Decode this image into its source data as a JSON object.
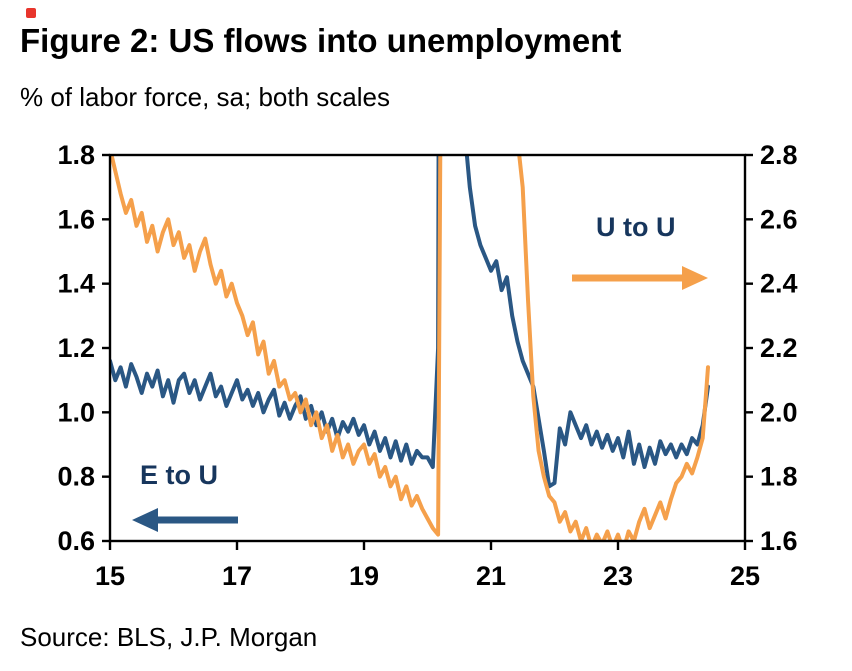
{
  "figure": {
    "title": "Figure 2: US flows into unemployment",
    "subtitle": "% of labor force, sa; both scales",
    "source": "Source: BLS, J.P. Morgan"
  },
  "chart_data": {
    "type": "line",
    "title": "Figure 2: US flows into unemployment",
    "subtitle": "% of labor force, sa; both scales",
    "source": "Source: BLS, J.P. Morgan",
    "x_range": [
      15,
      25
    ],
    "x_ticks": [
      15,
      17,
      19,
      21,
      23,
      25
    ],
    "x_start": 15.0,
    "x_step": 0.0833333,
    "axes": {
      "left": {
        "series": "E to U",
        "ylim": [
          0.6,
          1.8
        ],
        "ticks": [
          0.6,
          0.8,
          1.0,
          1.2,
          1.4,
          1.6,
          1.8
        ]
      },
      "right": {
        "series": "U to U",
        "ylim": [
          1.6,
          2.8
        ],
        "ticks": [
          1.6,
          1.8,
          2.0,
          2.2,
          2.4,
          2.6,
          2.8
        ]
      }
    },
    "series": [
      {
        "name": "E to U",
        "axis": "left",
        "color": "#2a5784",
        "values": [
          1.16,
          1.1,
          1.14,
          1.08,
          1.15,
          1.11,
          1.06,
          1.12,
          1.08,
          1.13,
          1.05,
          1.1,
          1.03,
          1.1,
          1.12,
          1.06,
          1.1,
          1.04,
          1.08,
          1.12,
          1.05,
          1.08,
          1.02,
          1.06,
          1.1,
          1.04,
          1.07,
          1.02,
          1.06,
          1.0,
          1.04,
          1.07,
          0.99,
          1.03,
          0.98,
          1.02,
          1.05,
          0.98,
          1.02,
          0.96,
          1.0,
          0.94,
          0.98,
          0.92,
          0.97,
          0.94,
          0.98,
          0.93,
          0.96,
          0.9,
          0.94,
          0.88,
          0.92,
          0.86,
          0.91,
          0.85,
          0.9,
          0.84,
          0.88,
          0.86,
          0.86,
          0.83,
          1.2,
          8.2,
          3.0,
          2.1,
          1.95,
          1.88,
          1.7,
          1.58,
          1.52,
          1.48,
          1.44,
          1.47,
          1.38,
          1.42,
          1.3,
          1.22,
          1.16,
          1.12,
          1.08,
          0.98,
          0.88,
          0.77,
          0.78,
          0.95,
          0.9,
          1.0,
          0.96,
          0.92,
          0.96,
          0.9,
          0.94,
          0.89,
          0.93,
          0.88,
          0.92,
          0.86,
          0.94,
          0.84,
          0.9,
          0.83,
          0.89,
          0.84,
          0.91,
          0.87,
          0.9,
          0.86,
          0.9,
          0.87,
          0.92,
          0.9,
          0.96,
          1.08
        ]
      },
      {
        "name": "U to U",
        "axis": "right",
        "color": "#f5a04b",
        "values": [
          2.82,
          2.75,
          2.68,
          2.62,
          2.66,
          2.58,
          2.62,
          2.53,
          2.58,
          2.5,
          2.56,
          2.6,
          2.52,
          2.56,
          2.48,
          2.52,
          2.44,
          2.5,
          2.54,
          2.46,
          2.4,
          2.44,
          2.36,
          2.4,
          2.34,
          2.3,
          2.24,
          2.28,
          2.18,
          2.22,
          2.12,
          2.16,
          2.08,
          2.1,
          2.04,
          2.06,
          2.0,
          2.04,
          1.96,
          2.0,
          1.92,
          1.96,
          1.88,
          1.93,
          1.86,
          1.9,
          1.84,
          1.88,
          1.9,
          1.84,
          1.87,
          1.8,
          1.83,
          1.77,
          1.8,
          1.73,
          1.77,
          1.71,
          1.74,
          1.7,
          1.67,
          1.64,
          1.62,
          4.5,
          6.5,
          6.0,
          5.6,
          5.2,
          4.8,
          4.4,
          4.1,
          3.9,
          3.7,
          3.5,
          3.3,
          3.1,
          2.95,
          2.85,
          2.7,
          2.35,
          2.05,
          1.88,
          1.8,
          1.74,
          1.72,
          1.66,
          1.69,
          1.63,
          1.66,
          1.6,
          1.64,
          1.58,
          1.62,
          1.59,
          1.63,
          1.58,
          1.62,
          1.57,
          1.63,
          1.6,
          1.66,
          1.7,
          1.64,
          1.68,
          1.72,
          1.67,
          1.73,
          1.78,
          1.8,
          1.84,
          1.81,
          1.86,
          1.92,
          2.14
        ]
      }
    ],
    "annotations": [
      {
        "text": "U to U",
        "color": "#17365d",
        "arrow_color": "#f5a04b",
        "arrow_dir": "right"
      },
      {
        "text": "E to U",
        "color": "#17365d",
        "arrow_color": "#2a5784",
        "arrow_dir": "left"
      }
    ]
  }
}
